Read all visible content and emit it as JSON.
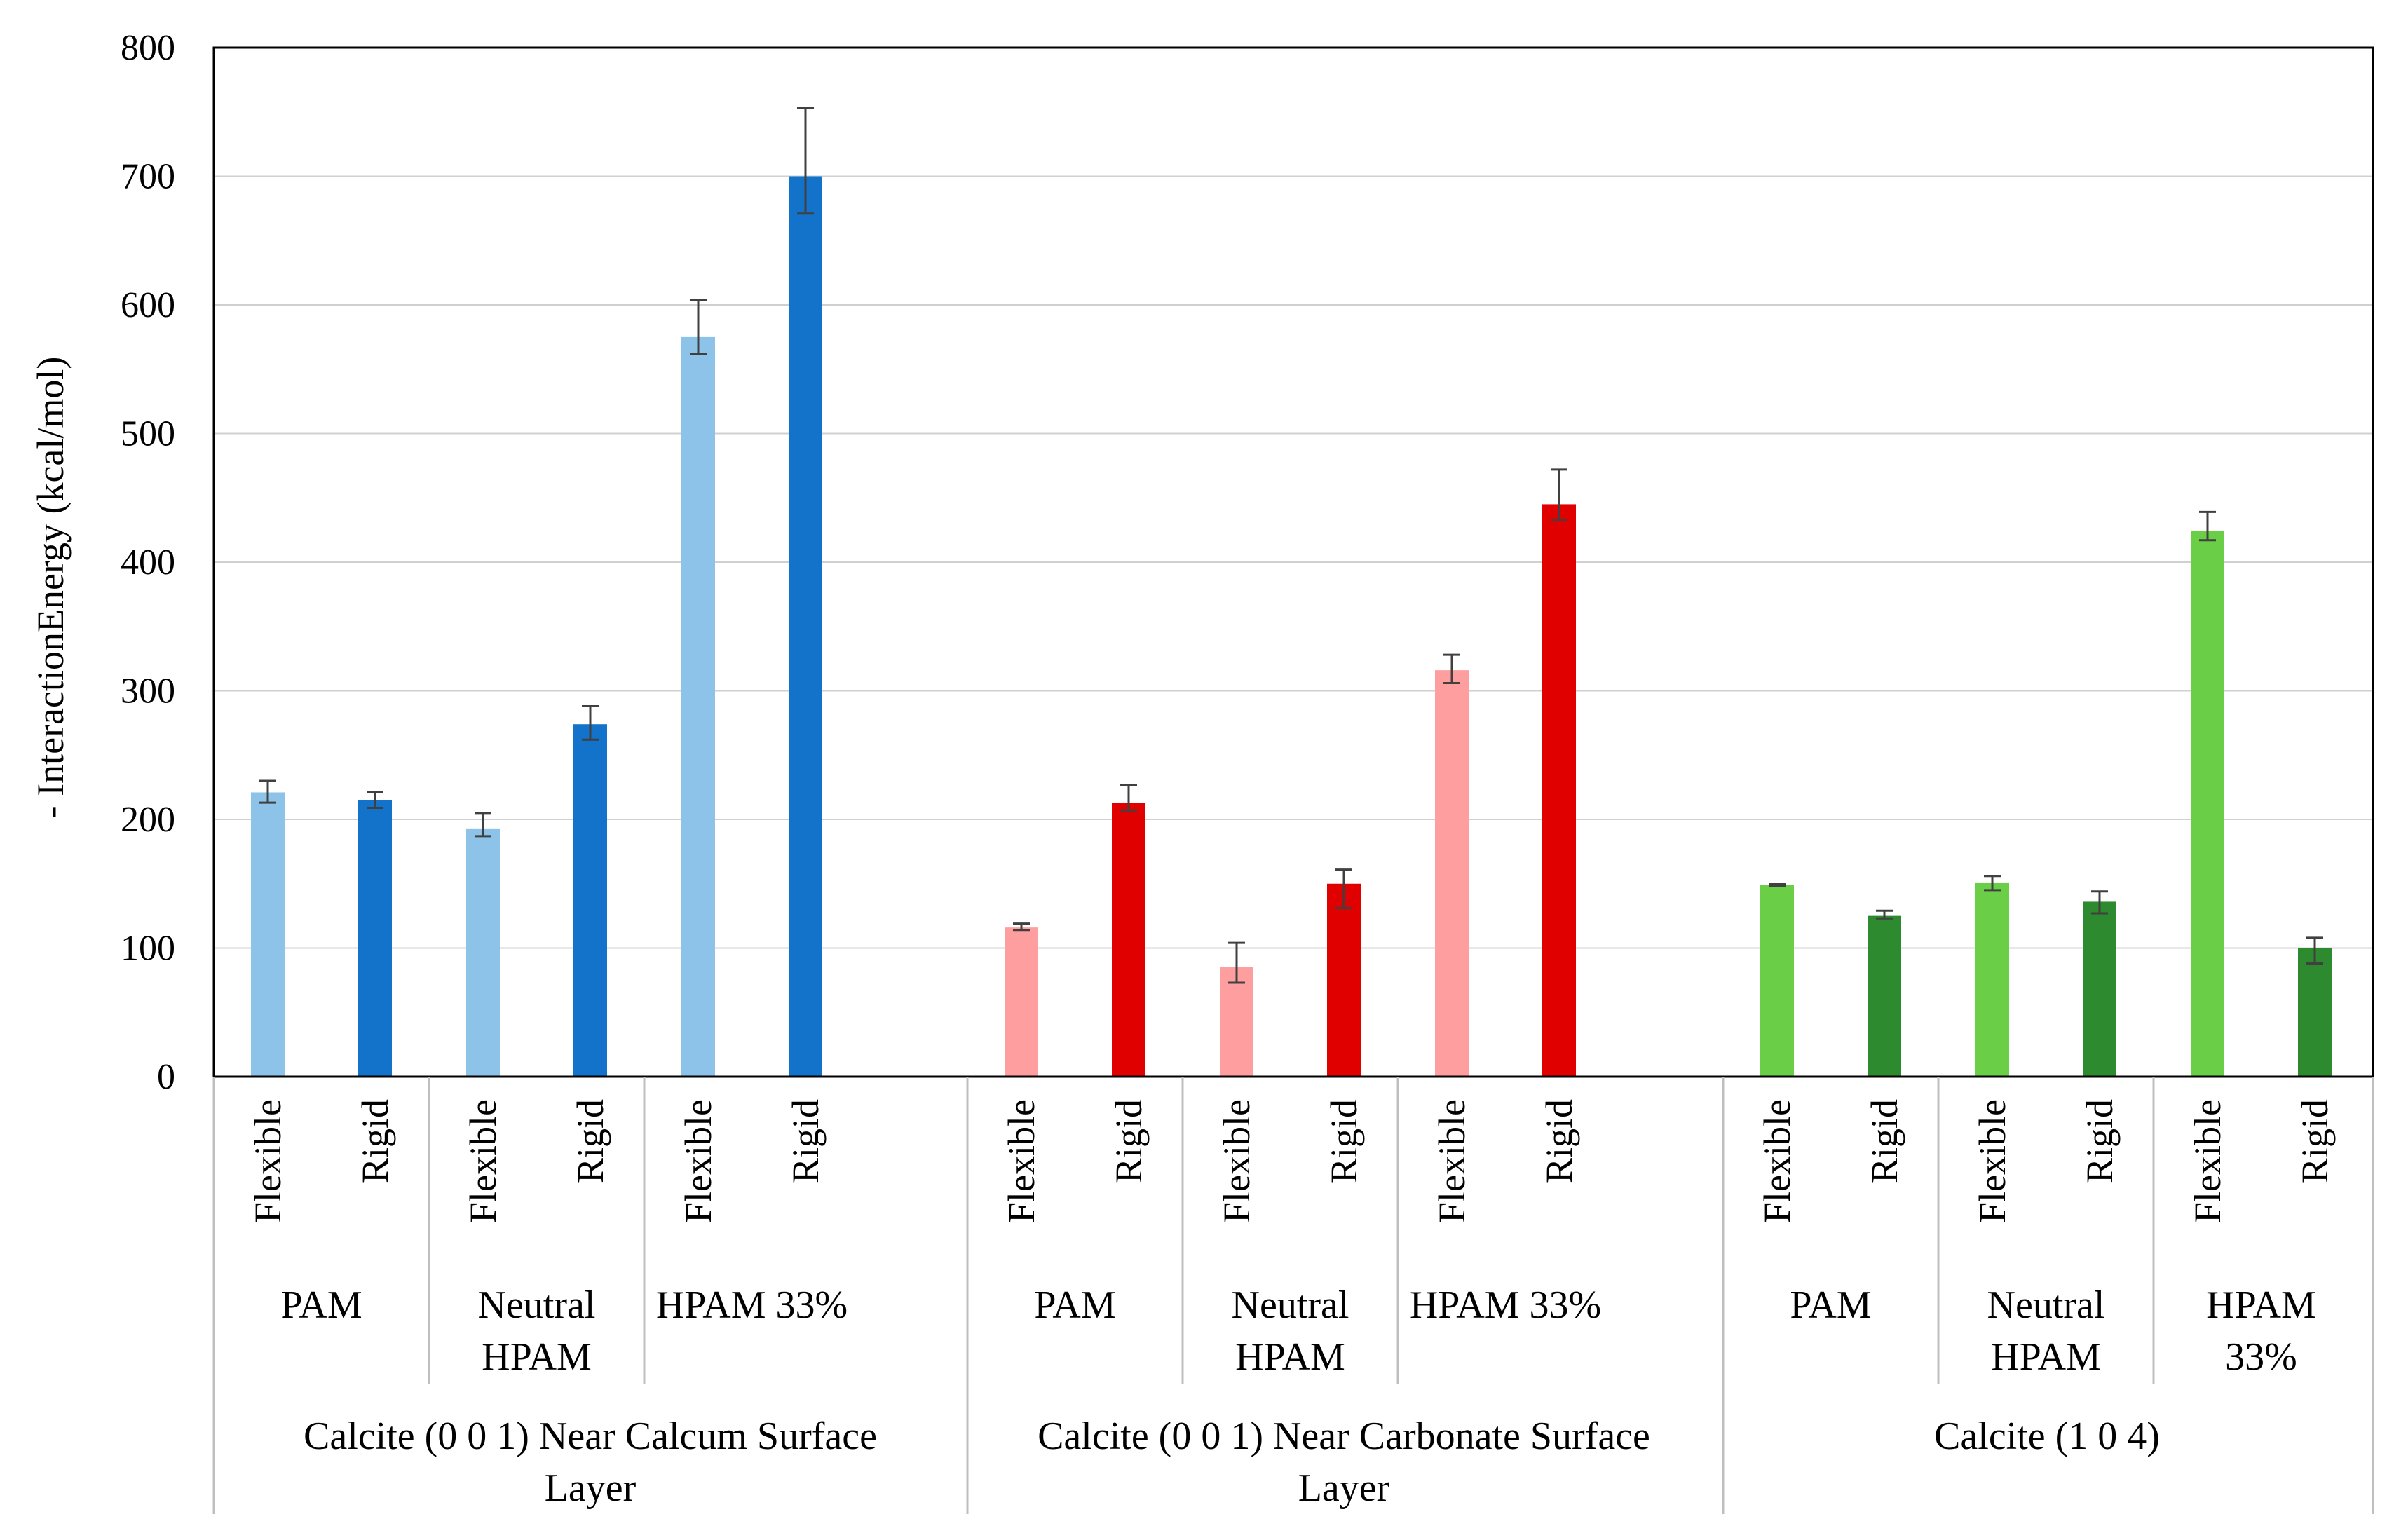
{
  "chart_data": {
    "type": "bar",
    "title": "",
    "xlabel": "",
    "ylabel": "- InteractionEnergy  (kcal/mol)",
    "ylim": [
      0,
      800
    ],
    "yticks": [
      0,
      100,
      200,
      300,
      400,
      500,
      600,
      700,
      800
    ],
    "ytick_labels": [
      "0",
      "100",
      "200",
      "300",
      "400",
      "500",
      "600",
      "700",
      "800"
    ],
    "grid": true,
    "legend": "none",
    "groups": [
      {
        "label_lines": [
          "Calcite (0 0 1) Near Calcum Surface",
          "Layer"
        ],
        "subgroups": [
          {
            "label_lines": [
              "PAM"
            ],
            "bars": [
              {
                "label": "Flexible",
                "value": 221,
                "err_low": 8,
                "err_high": 9,
                "color": "#8DC3E8"
              },
              {
                "label": "Rigid",
                "value": 215,
                "err_low": 6,
                "err_high": 6,
                "color": "#1372C9"
              }
            ]
          },
          {
            "label_lines": [
              "Neutral",
              "HPAM"
            ],
            "bars": [
              {
                "label": "Flexible",
                "value": 193,
                "err_low": 6,
                "err_high": 12,
                "color": "#8DC3E8"
              },
              {
                "label": "Rigid",
                "value": 274,
                "err_low": 12,
                "err_high": 14,
                "color": "#1372C9"
              }
            ]
          },
          {
            "label_lines": [
              "HPAM 33%"
            ],
            "bars": [
              {
                "label": "Flexible",
                "value": 575,
                "err_low": 13,
                "err_high": 29,
                "color": "#8DC3E8"
              },
              {
                "label": "Rigid",
                "value": 700,
                "err_low": 29,
                "err_high": 53,
                "color": "#1372C9"
              }
            ]
          }
        ]
      },
      {
        "label_lines": [
          "Calcite (0 0 1) Near Carbonate Surface",
          "Layer"
        ],
        "subgroups": [
          {
            "label_lines": [
              "PAM"
            ],
            "bars": [
              {
                "label": "Flexible",
                "value": 116,
                "err_low": 2,
                "err_high": 3,
                "color": "#FF9E9E"
              },
              {
                "label": "Rigid",
                "value": 213,
                "err_low": 6,
                "err_high": 14,
                "color": "#E00000"
              }
            ]
          },
          {
            "label_lines": [
              "Neutral",
              "HPAM"
            ],
            "bars": [
              {
                "label": "Flexible",
                "value": 85,
                "err_low": 12,
                "err_high": 19,
                "color": "#FF9E9E"
              },
              {
                "label": "Rigid",
                "value": 150,
                "err_low": 19,
                "err_high": 11,
                "color": "#E00000"
              }
            ]
          },
          {
            "label_lines": [
              "HPAM 33%"
            ],
            "bars": [
              {
                "label": "Flexible",
                "value": 316,
                "err_low": 10,
                "err_high": 12,
                "color": "#FF9E9E"
              },
              {
                "label": "Rigid",
                "value": 445,
                "err_low": 12,
                "err_high": 27,
                "color": "#E00000"
              }
            ]
          }
        ]
      },
      {
        "label_lines": [
          "Calcite (1 0 4)"
        ],
        "subgroups": [
          {
            "label_lines": [
              "PAM"
            ],
            "bars": [
              {
                "label": "Flexible",
                "value": 149,
                "err_low": 1,
                "err_high": 1,
                "color": "#6ACF47"
              },
              {
                "label": "Rigid",
                "value": 125,
                "err_low": 2,
                "err_high": 4,
                "color": "#2E8A2E"
              }
            ]
          },
          {
            "label_lines": [
              "Neutral",
              "HPAM"
            ],
            "bars": [
              {
                "label": "Flexible",
                "value": 151,
                "err_low": 6,
                "err_high": 5,
                "color": "#6ACF47"
              },
              {
                "label": "Rigid",
                "value": 136,
                "err_low": 9,
                "err_high": 8,
                "color": "#2E8A2E"
              }
            ]
          },
          {
            "label_lines": [
              "HPAM",
              "33%"
            ],
            "bars": [
              {
                "label": "Flexible",
                "value": 424,
                "err_low": 7,
                "err_high": 15,
                "color": "#6ACF47"
              },
              {
                "label": "Rigid",
                "value": 100,
                "err_low": 12,
                "err_high": 8,
                "color": "#2E8A2E"
              }
            ]
          }
        ]
      }
    ]
  }
}
